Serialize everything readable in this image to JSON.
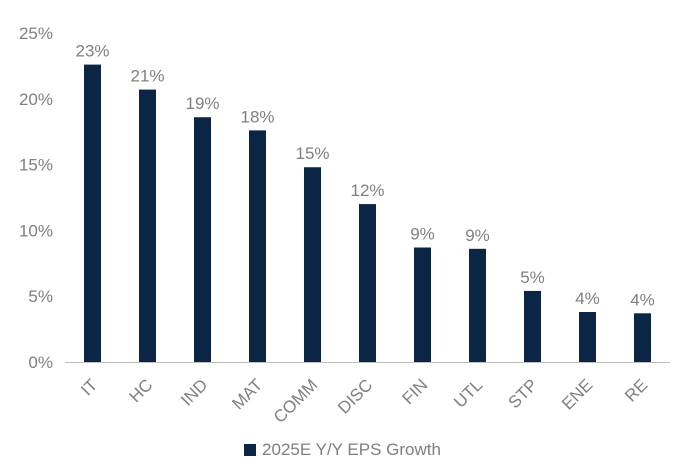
{
  "chart_data": {
    "type": "bar",
    "categories": [
      "IT",
      "HC",
      "IND",
      "MAT",
      "COMM",
      "DISC",
      "FIN",
      "UTL",
      "STP",
      "ENE",
      "RE"
    ],
    "series": [
      {
        "name": "2025E Y/Y EPS Growth",
        "values": [
          22.6,
          20.7,
          18.6,
          17.6,
          14.8,
          12.0,
          8.7,
          8.6,
          5.4,
          3.8,
          3.7
        ],
        "data_labels": [
          "23%",
          "21%",
          "19%",
          "18%",
          "15%",
          "12%",
          "9%",
          "9%",
          "5%",
          "4%",
          "4%"
        ],
        "color": "#0b2545"
      }
    ],
    "yticks": [
      "0%",
      "5%",
      "10%",
      "15%",
      "20%",
      "25%"
    ],
    "ylim": [
      0,
      25
    ],
    "ystep": 5,
    "legend": "bottom",
    "grid": false
  }
}
